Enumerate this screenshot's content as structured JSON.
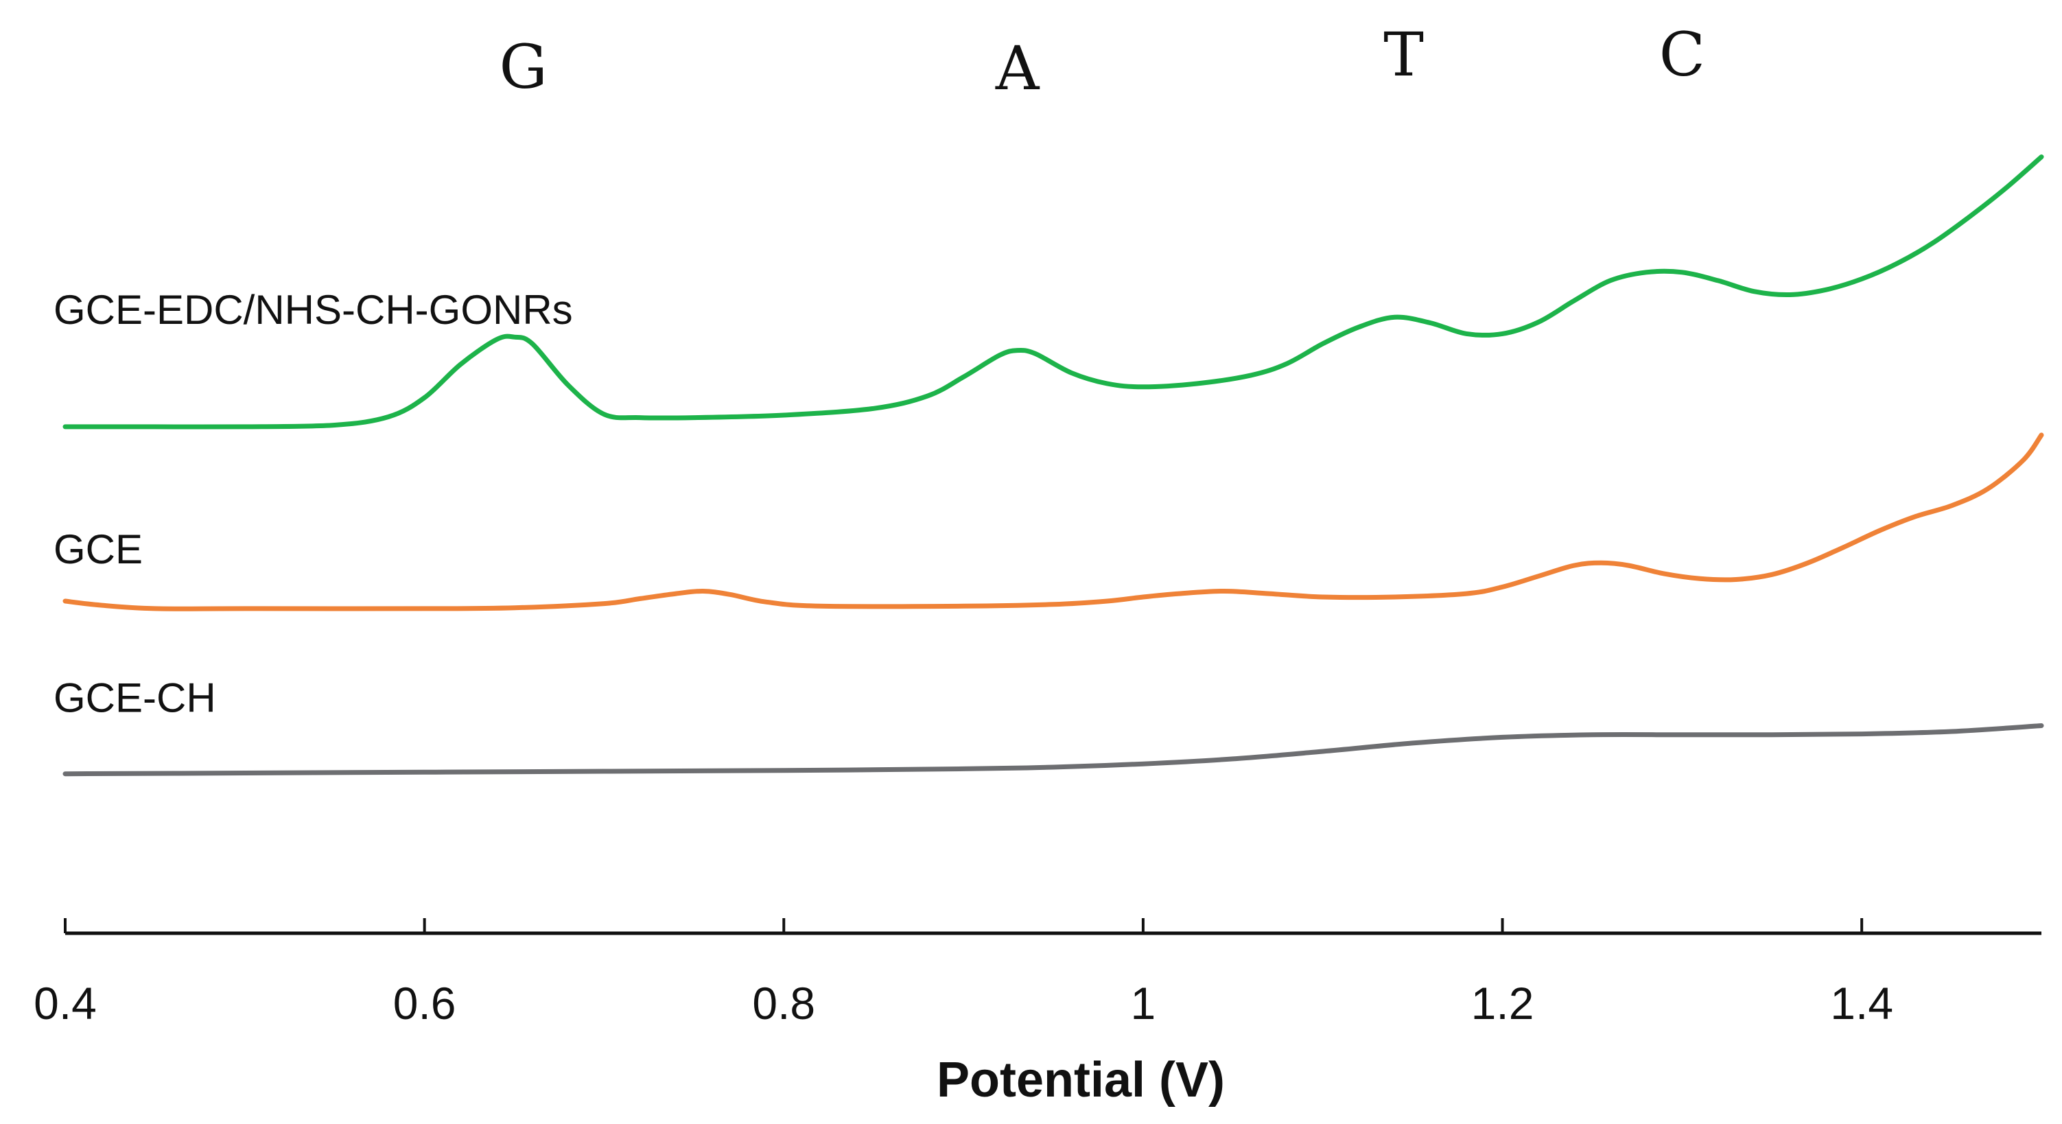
{
  "chart_data": {
    "type": "line",
    "title": "",
    "xlabel": "Potential (V)",
    "ylabel": "",
    "xlim": [
      0.4,
      1.5
    ],
    "ylim": [
      0,
      100
    ],
    "x_ticks": [
      0.4,
      0.6,
      0.8,
      1,
      1.2,
      1.4
    ],
    "x_tick_labels": [
      "0.4",
      "0.6",
      "0.8",
      "1",
      "1.2",
      "1.4"
    ],
    "grid": false,
    "peak_annotations": [
      {
        "text": "G",
        "x": 0.655
      },
      {
        "text": "A",
        "x": 0.93
      },
      {
        "text": "T",
        "x": 1.145
      },
      {
        "text": "C",
        "x": 1.3
      }
    ],
    "series": [
      {
        "name": "GCE-EDC/NHS-CH-GONRs",
        "color": "#1db34a",
        "x": [
          0.4,
          0.45,
          0.5,
          0.55,
          0.58,
          0.6,
          0.62,
          0.64,
          0.65,
          0.66,
          0.68,
          0.7,
          0.72,
          0.75,
          0.8,
          0.85,
          0.88,
          0.9,
          0.92,
          0.93,
          0.94,
          0.96,
          0.98,
          1.0,
          1.03,
          1.06,
          1.08,
          1.1,
          1.12,
          1.14,
          1.16,
          1.18,
          1.2,
          1.22,
          1.24,
          1.26,
          1.28,
          1.3,
          1.32,
          1.34,
          1.36,
          1.38,
          1.4,
          1.42,
          1.44,
          1.46,
          1.48,
          1.5
        ],
        "values": [
          61.0,
          61.0,
          61.0,
          61.2,
          62.2,
          64.5,
          68.5,
          71.5,
          71.8,
          71.0,
          66.0,
          62.5,
          62.1,
          62.1,
          62.4,
          63.2,
          64.7,
          67.0,
          69.6,
          70.2,
          69.8,
          67.5,
          66.2,
          65.8,
          66.2,
          67.2,
          68.6,
          71.0,
          73.0,
          74.2,
          73.5,
          72.2,
          72.2,
          73.6,
          76.2,
          78.6,
          79.6,
          79.6,
          78.6,
          77.3,
          76.9,
          77.5,
          78.8,
          80.7,
          83.2,
          86.3,
          89.7,
          93.5
        ]
      },
      {
        "name": "GCE",
        "color": "#ef8237",
        "x": [
          0.4,
          0.42,
          0.45,
          0.5,
          0.6,
          0.65,
          0.7,
          0.72,
          0.74,
          0.755,
          0.77,
          0.79,
          0.82,
          0.9,
          0.95,
          0.98,
          1.0,
          1.02,
          1.045,
          1.07,
          1.1,
          1.14,
          1.18,
          1.2,
          1.22,
          1.24,
          1.255,
          1.27,
          1.29,
          1.31,
          1.33,
          1.35,
          1.37,
          1.39,
          1.41,
          1.43,
          1.45,
          1.47,
          1.49,
          1.5
        ],
        "values": [
          40.0,
          39.5,
          39.1,
          39.1,
          39.1,
          39.2,
          39.7,
          40.3,
          40.9,
          41.2,
          40.8,
          39.9,
          39.4,
          39.4,
          39.6,
          40.0,
          40.5,
          40.9,
          41.2,
          40.9,
          40.5,
          40.5,
          40.9,
          41.7,
          43.0,
          44.3,
          44.6,
          44.3,
          43.3,
          42.7,
          42.6,
          43.2,
          44.6,
          46.5,
          48.5,
          50.2,
          51.5,
          53.5,
          57.0,
          60.0
        ]
      },
      {
        "name": "GCE-CH",
        "color": "#6d6e71",
        "x": [
          0.4,
          0.5,
          0.6,
          0.7,
          0.8,
          0.9,
          0.95,
          1.0,
          1.05,
          1.1,
          1.15,
          1.2,
          1.25,
          1.3,
          1.35,
          1.4,
          1.45,
          1.5
        ],
        "values": [
          19.2,
          19.3,
          19.4,
          19.5,
          19.6,
          19.8,
          20.0,
          20.4,
          21.0,
          21.9,
          22.9,
          23.6,
          23.9,
          23.9,
          23.9,
          24.0,
          24.3,
          25.0
        ]
      }
    ]
  }
}
